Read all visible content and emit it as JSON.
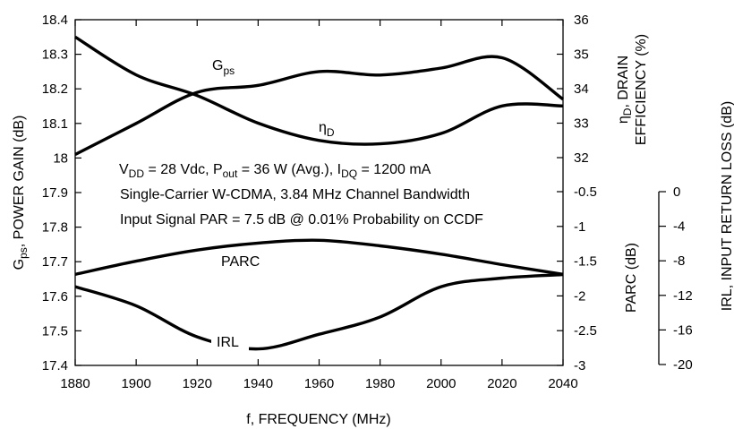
{
  "chart_data": {
    "type": "line",
    "x": [
      1880,
      1900,
      1920,
      1940,
      1960,
      1980,
      2000,
      2020,
      2040
    ],
    "xlim": [
      1880,
      2040
    ],
    "xticks": [
      "1880",
      "1900",
      "1920",
      "1940",
      "1960",
      "1980",
      "2000",
      "2020",
      "2040"
    ],
    "xlabel": "f, FREQUENCY (MHz)",
    "axes": {
      "left": {
        "ylim": [
          17.4,
          18.4
        ],
        "ticks": [
          "17.4",
          "17.5",
          "17.6",
          "17.7",
          "17.8",
          "17.9",
          "18",
          "18.1",
          "18.2",
          "18.3",
          "18.4"
        ],
        "label_main": "G",
        "label_sub": "ps",
        "label_rest": ", POWER GAIN (dB)"
      },
      "right_upper": {
        "ylim": [
          32,
          36
        ],
        "ticks": [
          "32",
          "33",
          "34",
          "35",
          "36"
        ],
        "label_line1_main": "η",
        "label_line1_sub": "D",
        "label_line1_rest": ", DRAIN",
        "label_line2": "EFFICIENCY (%)"
      },
      "right_lower": {
        "ylim": [
          -3,
          -0.5
        ],
        "ticks": [
          "-0.5",
          "-1",
          "-1.5",
          "-2",
          "-2.5",
          "-3"
        ],
        "label": "PARC (dB)"
      },
      "right_far": {
        "ylim": [
          -20,
          0
        ],
        "ticks": [
          "0",
          "-4",
          "-8",
          "-12",
          "-16",
          "-20"
        ],
        "label": "IRL, INPUT RETURN LOSS (dB)"
      }
    },
    "series": [
      {
        "name_main": "G",
        "name_sub": "ps",
        "axis": "left",
        "x": [
          1880,
          1900,
          1920,
          1940,
          1960,
          1980,
          2000,
          2020,
          2040
        ],
        "y": [
          18.01,
          18.1,
          18.19,
          18.21,
          18.25,
          18.24,
          18.26,
          18.29,
          18.17
        ]
      },
      {
        "name_main": "η",
        "name_sub": "D",
        "axis": "right_upper",
        "x": [
          1880,
          1900,
          1920,
          1940,
          1960,
          1980,
          2000,
          2020,
          2040
        ],
        "y": [
          35.5,
          34.4,
          33.8,
          33.0,
          32.5,
          32.4,
          32.7,
          33.5,
          33.5
        ]
      },
      {
        "name": "PARC",
        "axis": "right_lower",
        "x": [
          1880,
          1900,
          1920,
          1940,
          1960,
          1980,
          2000,
          2020,
          2040
        ],
        "y": [
          -1.69,
          -1.5,
          -1.34,
          -1.24,
          -1.2,
          -1.28,
          -1.4,
          -1.55,
          -1.69
        ]
      },
      {
        "name": "IRL",
        "axis": "right_far",
        "x": [
          1880,
          1900,
          1920,
          1940,
          1960,
          1980,
          2000,
          2020,
          2040
        ],
        "y": [
          -11.0,
          -13.2,
          -16.8,
          -18.2,
          -16.5,
          -14.5,
          -11.0,
          -10.0,
          -9.6
        ]
      }
    ],
    "annotations": {
      "line1": {
        "v": "V",
        "v_sub": "DD",
        "v_rest": " = 28 Vdc, P",
        "p_sub": "out",
        "p_rest": " = 36 W (Avg.), I",
        "i_sub": "DQ",
        "i_rest": " = 1200 mA"
      },
      "line2": "Single-Carrier W-CDMA, 3.84 MHz Channel Bandwidth",
      "line3": "Input Signal PAR = 7.5 dB @ 0.01% Probability on CCDF"
    },
    "grid": false,
    "colors": {
      "line": "#000000",
      "background": "#ffffff"
    }
  }
}
